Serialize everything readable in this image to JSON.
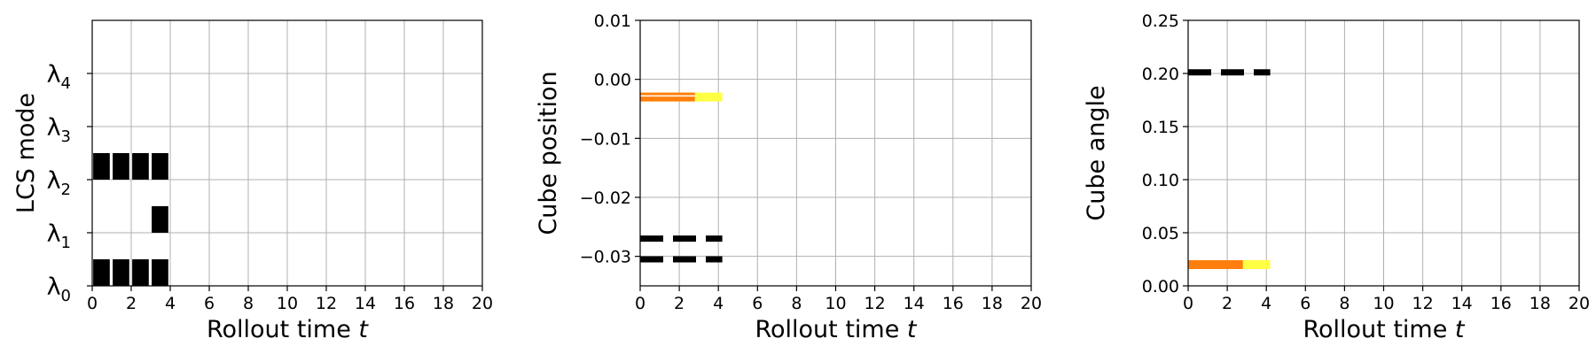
{
  "chart_data": [
    {
      "type": "heatmap",
      "xlabel": "Rollout time",
      "xlabel_var": "t",
      "ylabel": "LCS mode",
      "xlim": [
        0,
        20
      ],
      "ylim": [
        0,
        5
      ],
      "xticks": [
        0,
        2,
        4,
        6,
        8,
        10,
        12,
        14,
        16,
        18,
        20
      ],
      "y_categories": [
        {
          "sym": "λ",
          "sub": "0"
        },
        {
          "sym": "λ",
          "sub": "1"
        },
        {
          "sym": "λ",
          "sub": "2"
        },
        {
          "sym": "λ",
          "sub": "3"
        },
        {
          "sym": "λ",
          "sub": "4"
        }
      ],
      "grid": true,
      "active_cells": [
        {
          "mode": 0,
          "t": 0
        },
        {
          "mode": 0,
          "t": 1
        },
        {
          "mode": 0,
          "t": 2
        },
        {
          "mode": 0,
          "t": 3
        },
        {
          "mode": 1,
          "t": 3
        },
        {
          "mode": 2,
          "t": 0
        },
        {
          "mode": 2,
          "t": 1
        },
        {
          "mode": 2,
          "t": 2
        },
        {
          "mode": 2,
          "t": 3
        }
      ],
      "cell_color": "#000000"
    },
    {
      "type": "line",
      "xlabel": "Rollout time",
      "xlabel_var": "t",
      "ylabel": "Cube position",
      "xlim": [
        0,
        20
      ],
      "ylim": [
        -0.035,
        0.01
      ],
      "xticks": [
        0,
        2,
        4,
        6,
        8,
        10,
        12,
        14,
        16,
        18,
        20
      ],
      "yticks": [
        -0.03,
        -0.02,
        -0.01,
        0.0,
        0.01
      ],
      "ytick_labels": [
        "−0.03",
        "−0.02",
        "−0.01",
        "0.00",
        "0.01"
      ],
      "grid": true,
      "series": [
        {
          "style": "solid",
          "color": "#ffff44",
          "x": [
            0,
            4.2
          ],
          "y": [
            -0.003,
            -0.003
          ]
        },
        {
          "style": "solid",
          "color": "#ff7f0e",
          "x": [
            0,
            2.8
          ],
          "y": [
            -0.003,
            -0.003
          ]
        },
        {
          "style": "solid",
          "color": "#ffffff",
          "x": [
            0,
            2.8
          ],
          "y": [
            -0.0028,
            -0.0028
          ]
        },
        {
          "style": "dashed",
          "color": "#000000",
          "x": [
            0,
            4.2
          ],
          "y": [
            -0.027,
            -0.027
          ]
        },
        {
          "style": "dashed",
          "color": "#000000",
          "x": [
            0,
            4.2
          ],
          "y": [
            -0.0305,
            -0.0305
          ]
        }
      ]
    },
    {
      "type": "line",
      "xlabel": "Rollout time",
      "xlabel_var": "t",
      "ylabel": "Cube angle",
      "xlim": [
        0,
        20
      ],
      "ylim": [
        0,
        0.25
      ],
      "xticks": [
        0,
        2,
        4,
        6,
        8,
        10,
        12,
        14,
        16,
        18,
        20
      ],
      "yticks": [
        0.0,
        0.05,
        0.1,
        0.15,
        0.2,
        0.25
      ],
      "ytick_labels": [
        "0.00",
        "0.05",
        "0.10",
        "0.15",
        "0.20",
        "0.25"
      ],
      "grid": true,
      "series": [
        {
          "style": "solid",
          "color": "#ffff44",
          "x": [
            0,
            4.2
          ],
          "y": [
            0.02,
            0.02
          ]
        },
        {
          "style": "solid",
          "color": "#ff7f0e",
          "x": [
            0,
            2.8
          ],
          "y": [
            0.02,
            0.02
          ]
        },
        {
          "style": "dashed",
          "color": "#000000",
          "x": [
            0,
            4.2
          ],
          "y": [
            0.201,
            0.201
          ]
        }
      ]
    }
  ]
}
